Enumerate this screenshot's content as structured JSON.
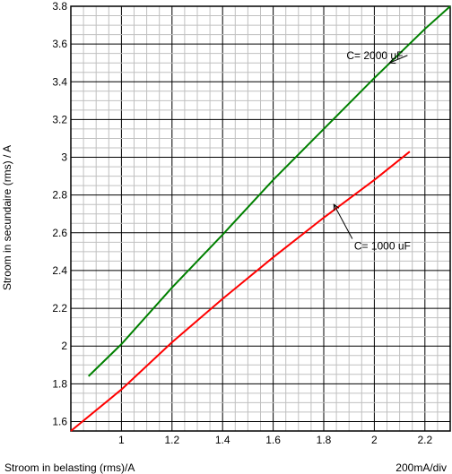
{
  "chart_data": {
    "type": "line",
    "xlabel": "Stroom in belasting (rms)/A",
    "ylabel": "Stroom in secundaire (rms) / A",
    "scale_note": "200mA/div",
    "xlim": [
      0.8,
      2.3
    ],
    "ylim": [
      1.55,
      3.8
    ],
    "x_ticks": [
      1,
      1.2,
      1.4,
      1.6,
      1.8,
      2,
      2.2
    ],
    "x_tick_labels": [
      "1",
      "1.2",
      "1.4",
      "1.6",
      "1.8",
      "2",
      "2.2"
    ],
    "y_ticks": [
      1.6,
      1.8,
      2,
      2.2,
      2.4,
      2.6,
      2.8,
      3,
      3.2,
      3.4,
      3.6,
      3.8
    ],
    "y_tick_labels": [
      "1.6",
      "1.8",
      "2",
      "2.2",
      "2.4",
      "2.6",
      "2.8",
      "3",
      "3.2",
      "3.4",
      "3.6",
      "3.8"
    ],
    "grid": true,
    "series": [
      {
        "name": "C= 2000 uF",
        "color": "#008000",
        "x": [
          0.87,
          1.0,
          1.2,
          1.4,
          1.6,
          1.8,
          2.0,
          2.2,
          2.3
        ],
        "y": [
          1.84,
          2.01,
          2.31,
          2.59,
          2.88,
          3.15,
          3.42,
          3.68,
          3.8
        ]
      },
      {
        "name": "C= 1000 uF",
        "color": "#ff0000",
        "x": [
          0.8,
          1.0,
          1.2,
          1.4,
          1.6,
          1.8,
          2.0,
          2.14
        ],
        "y": [
          1.55,
          1.77,
          2.02,
          2.25,
          2.47,
          2.68,
          2.88,
          3.03
        ]
      }
    ],
    "annotations": [
      {
        "text": "C= 2000 uF",
        "x": 1.89,
        "y": 3.54,
        "arrow_to": [
          2.06,
          3.5
        ]
      },
      {
        "text": "C= 1000 uF",
        "x": 1.92,
        "y": 2.53,
        "arrow_to": [
          1.84,
          2.75
        ]
      }
    ]
  },
  "colors": {
    "grid_minor": "#c0c0c0",
    "grid_major": "#000000"
  }
}
